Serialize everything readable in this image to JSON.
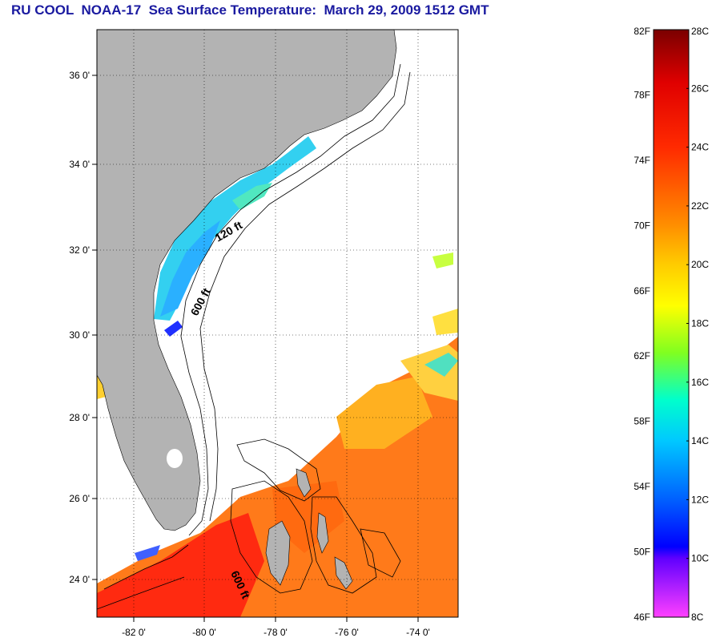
{
  "title": "RU COOL  NOAA-17  Sea Surface Temperature:  March 29, 2009 1512 GMT",
  "map": {
    "lat_labels": [
      "36 0'",
      "34 0'",
      "32 0'",
      "30 0'",
      "28 0'",
      "26 0'",
      "24 0'"
    ],
    "lon_labels": [
      "-82 0'",
      "-80 0'",
      "-78 0'",
      "-76 0'",
      "-74 0'"
    ],
    "contour_labels": [
      "120 ft",
      "600 ft",
      "600 ft"
    ],
    "land_color": "#b3b3b3",
    "no_data_color": "#ffffff"
  },
  "colorbar": {
    "fahrenheit_labels": [
      "82F",
      "78F",
      "74F",
      "70F",
      "66F",
      "62F",
      "58F",
      "54F",
      "50F",
      "46F"
    ],
    "celsius_labels": [
      "28C",
      "26C",
      "24C",
      "22C",
      "20C",
      "18C",
      "16C",
      "14C",
      "12C",
      "10C",
      "8C"
    ],
    "range_f": [
      46,
      82
    ],
    "range_c": [
      8,
      28
    ],
    "colors_top_to_bottom": [
      "#7a0000",
      "#ff0000",
      "#ff8000",
      "#ffff00",
      "#80ff00",
      "#00ffff",
      "#0080ff",
      "#0000ff",
      "#8000ff",
      "#ff40ff"
    ]
  }
}
